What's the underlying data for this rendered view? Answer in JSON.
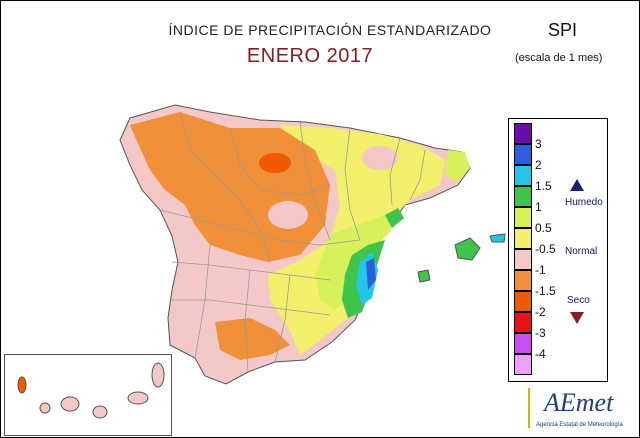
{
  "header": {
    "title": "ÍNDICE DE PRECIPITACIÓN ESTANDARIZADO",
    "subtitle": "ENERO 2017",
    "index_code": "SPI",
    "scale_note": "(escala de 1 mes)"
  },
  "legend": {
    "ticks": [
      "3",
      "2",
      "1.5",
      "1",
      "0.5",
      "-0.5",
      "-1",
      "-1.5",
      "-2",
      "-3",
      "-4"
    ],
    "colors": [
      "#6a0dad",
      "#2c5fe0",
      "#22c6e8",
      "#3ec44a",
      "#d8f05a",
      "#f2f06a",
      "#f5c8c8",
      "#f09038",
      "#f05a00",
      "#e81414",
      "#c850f0",
      "#f0a0f8"
    ],
    "humid_label": "Humedo",
    "normal_label": "Normal",
    "dry_label": "Seco"
  },
  "map_colors": {
    "dry_mod": "#f09038",
    "dry_severe": "#f05a00",
    "normal_low": "#f5c8c8",
    "normal_high": "#f2f06a",
    "humid_mod": "#d8f05a",
    "humid": "#3ec44a",
    "very_humid": "#22c6e8",
    "extreme_humid": "#2c5fe0",
    "borders": "#9a9a9a",
    "sea": "#ffffff"
  },
  "logo": {
    "name": "AEmet",
    "caption": "Agencia Estatal de Meteorología"
  }
}
